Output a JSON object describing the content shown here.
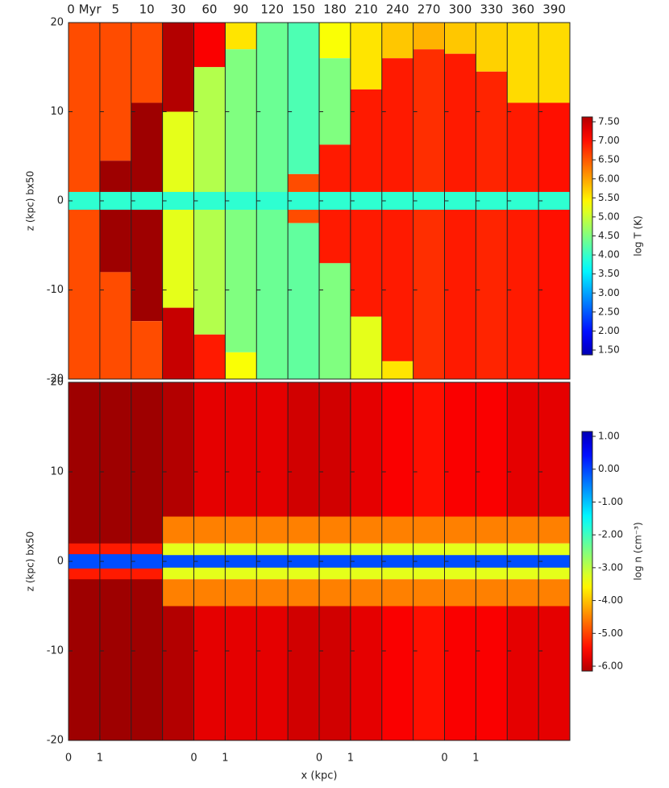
{
  "chart_data": {
    "type": "strips",
    "columns": [
      "0 Myr",
      "5",
      "10",
      "30",
      "60",
      "90",
      "120",
      "150",
      "180",
      "210",
      "240",
      "270",
      "300",
      "330",
      "360",
      "390"
    ],
    "xlabel": "x (kpc)",
    "xlim": [
      0,
      1
    ],
    "xticks": [
      0,
      1
    ],
    "ylim": [
      -20,
      20
    ],
    "yticks": [
      -20,
      -10,
      0,
      10,
      20
    ],
    "panels": [
      {
        "ylabel": "z (kpc) bx50",
        "colorbar_label": "log T (K)",
        "colorbar_lim": [
          1.5,
          7.5
        ],
        "colorbar_ticks": [
          {
            "value": 7.5,
            "label": "7.50"
          },
          {
            "value": 7,
            "label": "7.00"
          },
          {
            "value": 6.5,
            "label": "6.50"
          },
          {
            "value": 6,
            "label": "6.00"
          },
          {
            "value": 5.5,
            "label": "5.50"
          },
          {
            "value": 5,
            "label": "5.00"
          },
          {
            "value": 4.5,
            "label": "4.50"
          },
          {
            "value": 4,
            "label": "4.00"
          },
          {
            "value": 3.5,
            "label": "3.50"
          },
          {
            "value": 3,
            "label": "3.00"
          },
          {
            "value": 2.5,
            "label": "2.50"
          },
          {
            "value": 2,
            "label": "2.00"
          },
          {
            "value": 1.5,
            "label": "1.50"
          }
        ]
      },
      {
        "ylabel": "z (kpc) bx50",
        "colorbar_label": "log n (cm⁻³)",
        "colorbar_lim": [
          -6,
          1
        ],
        "colorbar_ticks": [
          {
            "value": 1,
            "label": "1.00"
          },
          {
            "value": 0,
            "label": "0.00"
          },
          {
            "value": -1,
            "label": "-1.00"
          },
          {
            "value": -2,
            "label": "-2.00"
          },
          {
            "value": -3,
            "label": "-3.00"
          },
          {
            "value": -4,
            "label": "-4.00"
          },
          {
            "value": -5,
            "label": "-5.00"
          },
          {
            "value": -6,
            "label": "-6.00"
          }
        ]
      }
    ]
  }
}
